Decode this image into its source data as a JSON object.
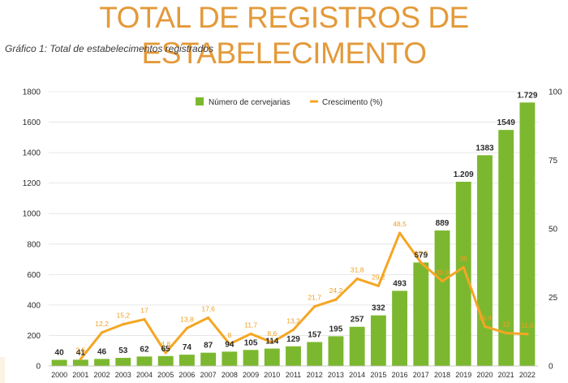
{
  "page": {
    "title": "TOTAL DE REGISTROS DE ESTABELECIMENTO",
    "subtitle": "Gráfico 1: Total de estabelecimentos registrados"
  },
  "colors": {
    "title": "#e39a3a",
    "bars": "#7cb82f",
    "line": "#f5a623",
    "grid": "#d9d9d9"
  },
  "chart_data": {
    "type": "bar",
    "title": "Gráfico 1: Total de estabelecimentos registrados",
    "categories": [
      "2000",
      "2001",
      "2002",
      "2003",
      "2004",
      "2005",
      "2006",
      "2007",
      "2008",
      "2009",
      "2010",
      "2011",
      "2012",
      "2013",
      "2014",
      "2015",
      "2016",
      "2017",
      "2018",
      "2019",
      "2020",
      "2021",
      "2022"
    ],
    "series": [
      {
        "name": "Número de cervejarias",
        "type": "bar",
        "axis": "left",
        "values": [
          40,
          41,
          46,
          53,
          62,
          65,
          74,
          87,
          94,
          105,
          114,
          129,
          157,
          195,
          257,
          332,
          493,
          679,
          889,
          1209,
          1383,
          1549,
          1729
        ],
        "labels": [
          "40",
          "41",
          "46",
          "53",
          "62",
          "65",
          "74",
          "87",
          "94",
          "105",
          "114",
          "129",
          "157",
          "195",
          "257",
          "332",
          "493",
          "679",
          "889",
          "1.209",
          "1383",
          "1549",
          "1.729"
        ]
      },
      {
        "name": "Crescimento (%)",
        "type": "line",
        "axis": "right",
        "values": [
          null,
          2.5,
          12.2,
          15.2,
          17,
          4.8,
          13.8,
          17.6,
          8,
          11.7,
          8.6,
          13.2,
          21.7,
          24.2,
          31.8,
          29.2,
          48.5,
          37.7,
          30.9,
          36,
          14.4,
          12,
          11.6
        ],
        "labels": [
          "",
          "2,5",
          "12,2",
          "15,2",
          "17",
          "4,8",
          "13,8",
          "17,6",
          "8",
          "11,7",
          "8,6",
          "13,2",
          "21,7",
          "24,2",
          "31,8",
          "29,2",
          "48,5",
          "37,7",
          "30,9",
          "36",
          "14,4",
          "12",
          "11,6"
        ]
      }
    ],
    "y_left": {
      "min": 0,
      "max": 1800,
      "ticks": [
        "0",
        "200",
        "400",
        "600",
        "800",
        "1000",
        "1200",
        "1400",
        "1600",
        "1800"
      ]
    },
    "y_right": {
      "min": 0,
      "max": 100,
      "ticks": [
        "0",
        "25",
        "50",
        "75",
        "100"
      ]
    },
    "legend": [
      "Número de cervejarias",
      "Crescimento (%)"
    ],
    "legend_position": "top-center",
    "grid": true
  }
}
